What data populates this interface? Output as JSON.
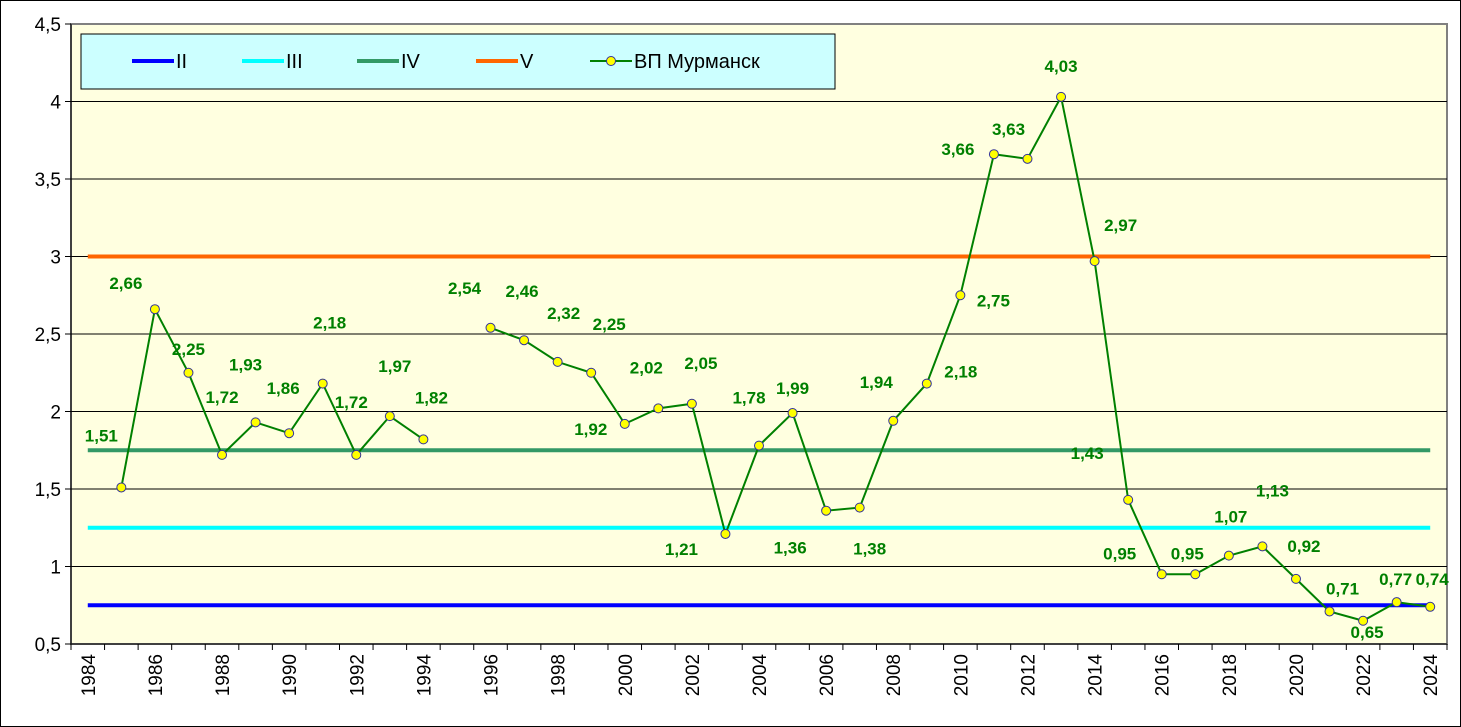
{
  "chart_data": {
    "type": "line",
    "title": "",
    "xlabel": "",
    "ylabel": "",
    "ylim": [
      0.5,
      4.5
    ],
    "yticks": [
      "0,5",
      "1",
      "1,5",
      "2",
      "2,5",
      "3",
      "3,5",
      "4",
      "4,5"
    ],
    "ytick_values": [
      0.5,
      1,
      1.5,
      2,
      2.5,
      3,
      3.5,
      4,
      4.5
    ],
    "x_categories": [
      1984,
      1985,
      1986,
      1987,
      1988,
      1989,
      1990,
      1991,
      1992,
      1993,
      1994,
      1995,
      1996,
      1997,
      1998,
      1999,
      2000,
      2001,
      2002,
      2003,
      2004,
      2005,
      2006,
      2007,
      2008,
      2009,
      2010,
      2011,
      2012,
      2013,
      2014,
      2015,
      2016,
      2017,
      2018,
      2019,
      2020,
      2021,
      2022,
      2023,
      2024
    ],
    "xticks": [
      "1984",
      "1986",
      "1988",
      "1990",
      "1992",
      "1994",
      "1996",
      "1998",
      "2000",
      "2002",
      "2004",
      "2006",
      "2008",
      "2010",
      "2012",
      "2014",
      "2016",
      "2018",
      "2020",
      "2022",
      "2024"
    ],
    "grid": true,
    "legend_position": "top-left",
    "thresholds": [
      {
        "name": "II",
        "value": 0.75,
        "color": "#0000FF"
      },
      {
        "name": "III",
        "value": 1.25,
        "color": "#00FFFF"
      },
      {
        "name": "IV",
        "value": 1.75,
        "color": "#339966"
      },
      {
        "name": "V",
        "value": 3.0,
        "color": "#FF6600"
      }
    ],
    "series": [
      {
        "name": "ВП Мурманск",
        "color": "#008000",
        "marker_color": "#FFFF00",
        "points": [
          {
            "x": 1985,
            "y": 1.51,
            "label": "1,51"
          },
          {
            "x": 1986,
            "y": 2.66,
            "label": "2,66"
          },
          {
            "x": 1987,
            "y": 2.25,
            "label": "2,25"
          },
          {
            "x": 1988,
            "y": 1.72,
            "label": "1,72"
          },
          {
            "x": 1989,
            "y": 1.93,
            "label": "1,93"
          },
          {
            "x": 1990,
            "y": 1.86,
            "label": "1,86"
          },
          {
            "x": 1991,
            "y": 2.18,
            "label": "2,18"
          },
          {
            "x": 1992,
            "y": 1.72,
            "label": "1,72"
          },
          {
            "x": 1993,
            "y": 1.97,
            "label": "1,97"
          },
          {
            "x": 1994,
            "y": 1.82,
            "label": "1,82"
          },
          {
            "x": 1995,
            "y": null,
            "label": null
          },
          {
            "x": 1996,
            "y": 2.54,
            "label": "2,54"
          },
          {
            "x": 1997,
            "y": 2.46,
            "label": "2,46"
          },
          {
            "x": 1998,
            "y": 2.32,
            "label": "2,32"
          },
          {
            "x": 1999,
            "y": 2.25,
            "label": "2,25"
          },
          {
            "x": 2000,
            "y": 1.92,
            "label": "1,92"
          },
          {
            "x": 2001,
            "y": 2.02,
            "label": "2,02"
          },
          {
            "x": 2002,
            "y": 2.05,
            "label": "2,05"
          },
          {
            "x": 2003,
            "y": 1.21,
            "label": "1,21"
          },
          {
            "x": 2004,
            "y": 1.78,
            "label": "1,78"
          },
          {
            "x": 2005,
            "y": 1.99,
            "label": "1,99"
          },
          {
            "x": 2006,
            "y": 1.36,
            "label": "1,36"
          },
          {
            "x": 2007,
            "y": 1.38,
            "label": "1,38"
          },
          {
            "x": 2008,
            "y": 1.94,
            "label": "1,94"
          },
          {
            "x": 2009,
            "y": 2.18,
            "label": "2,18"
          },
          {
            "x": 2010,
            "y": 2.75,
            "label": "2,75"
          },
          {
            "x": 2011,
            "y": 3.66,
            "label": "3,66"
          },
          {
            "x": 2012,
            "y": 3.63,
            "label": "3,63"
          },
          {
            "x": 2013,
            "y": 4.03,
            "label": "4,03"
          },
          {
            "x": 2014,
            "y": 2.97,
            "label": "2,97"
          },
          {
            "x": 2015,
            "y": 1.43,
            "label": "1,43"
          },
          {
            "x": 2016,
            "y": 0.95,
            "label": "0,95"
          },
          {
            "x": 2017,
            "y": 0.95,
            "label": "0,95"
          },
          {
            "x": 2018,
            "y": 1.07,
            "label": "1,07"
          },
          {
            "x": 2019,
            "y": 1.13,
            "label": "1,13"
          },
          {
            "x": 2020,
            "y": 0.92,
            "label": "0,92"
          },
          {
            "x": 2021,
            "y": 0.71,
            "label": "0,71"
          },
          {
            "x": 2022,
            "y": 0.65,
            "label": "0,65"
          },
          {
            "x": 2023,
            "y": 0.77,
            "label": "0,77"
          },
          {
            "x": 2024,
            "y": 0.74,
            "label": "0,74"
          }
        ]
      }
    ]
  }
}
